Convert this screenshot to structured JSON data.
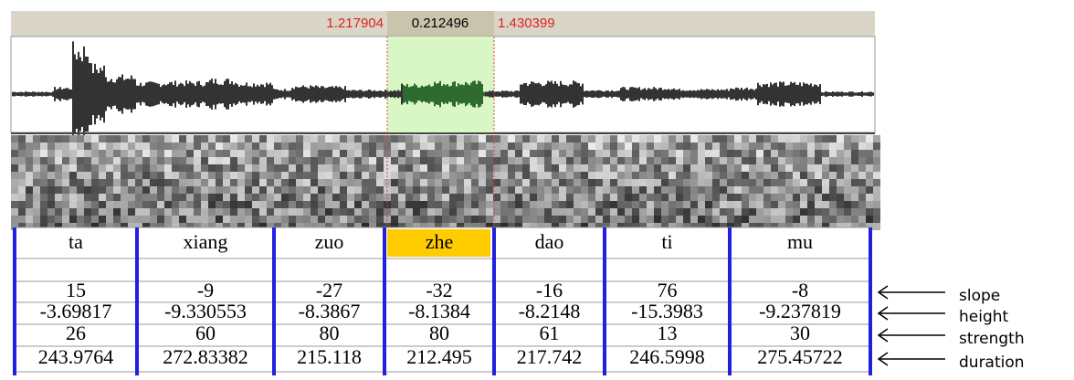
{
  "selection": {
    "start": "1.217904",
    "duration": "0.212496",
    "end": "1.430399"
  },
  "table": {
    "header": [
      "ta",
      "xiang",
      "zuo",
      "zhe",
      "dao",
      "ti",
      "mu"
    ],
    "rows": [
      [
        "15",
        "-9",
        "-27",
        "-32",
        "-16",
        "76",
        "-8"
      ],
      [
        "-3.69817",
        "-9.330553",
        "-8.3867",
        "-8.1384",
        "-8.2148",
        "-15.3983",
        "-9.237819"
      ],
      [
        "26",
        "60",
        "80",
        "80",
        "61",
        "13",
        "30"
      ],
      [
        "243.9764",
        "272.83382",
        "215.118",
        "212.495",
        "217.742",
        "246.5998",
        "275.45722"
      ]
    ]
  },
  "annotations": [
    "slope",
    "height",
    "strength",
    "duration"
  ]
}
